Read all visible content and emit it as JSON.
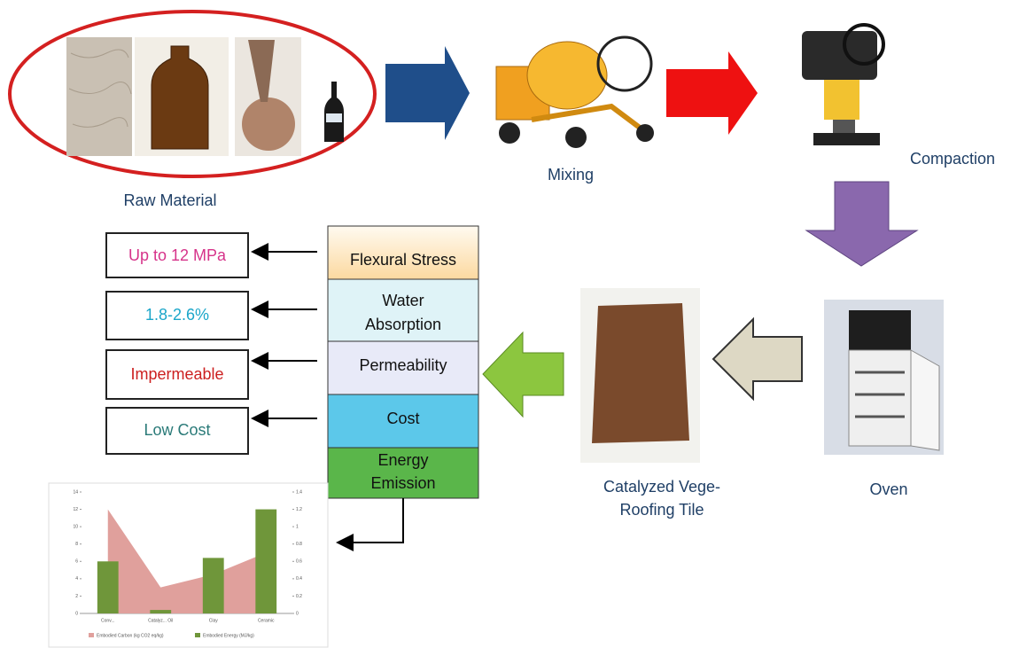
{
  "steps": {
    "raw_material": "Raw Material",
    "mixing": "Mixing",
    "compaction": "Compaction",
    "oven": "Oven",
    "tile": [
      "Catalyzed Vege-",
      "Roofing Tile"
    ]
  },
  "properties": [
    [
      "Flexural Stress"
    ],
    [
      "Water",
      "Absorption"
    ],
    [
      "Permeability"
    ],
    [
      "Cost"
    ],
    [
      "Energy",
      "Emission"
    ]
  ],
  "results": [
    "Up to 12 MPa",
    "1.8-2.6%",
    "Impermeable",
    "Low Cost"
  ],
  "chart_data": {
    "type": "bar",
    "categories": [
      "Conv...",
      "Catalyz... Oil",
      "Clay",
      "Ceramic"
    ],
    "series": [
      {
        "name": "Embodied Carbon (kg CO2 eq/kg)",
        "color": "#e0a09c",
        "type": "area",
        "axis": "y2",
        "values": [
          1.2,
          0.3,
          0.45,
          0.7
        ]
      },
      {
        "name": "Embodied Energy (MJ/kg)",
        "color": "#6f963a",
        "type": "bar",
        "values": [
          6,
          0.4,
          6.4,
          12
        ]
      }
    ],
    "ylim": [
      0,
      14
    ],
    "yticks": [
      0,
      2,
      4,
      6,
      8,
      10,
      12,
      14
    ],
    "y2lim": [
      0,
      1.4
    ],
    "y2ticks": [
      0,
      0.2,
      0.4,
      0.6,
      0.8,
      1,
      1.2,
      1.4
    ]
  }
}
